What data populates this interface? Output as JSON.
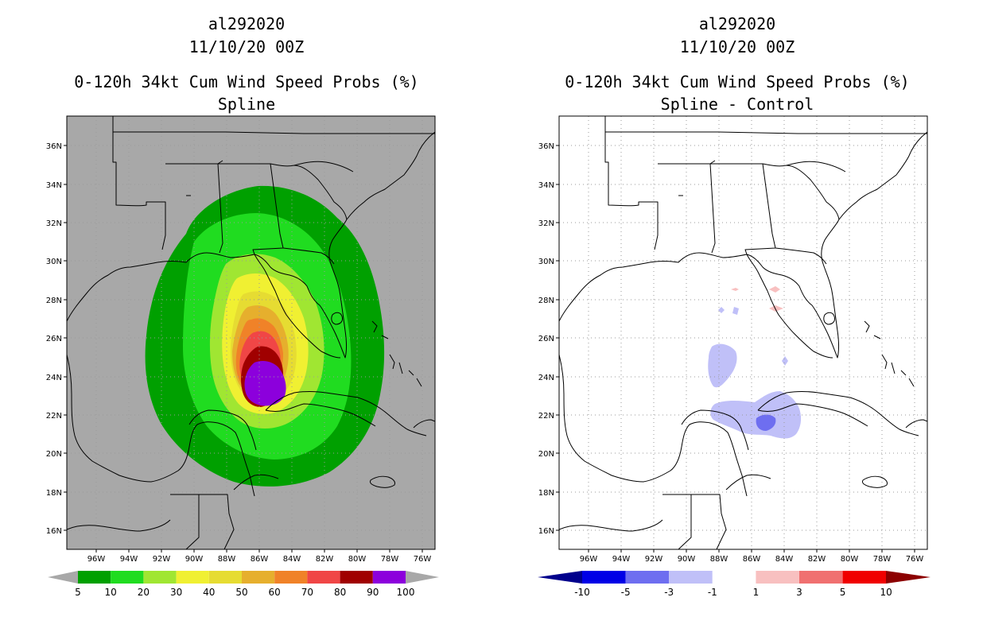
{
  "panels": [
    {
      "id": "left",
      "title_line1": "al292020",
      "title_line2": "11/10/20 00Z",
      "title_line3": "0-120h 34kt Cum Wind Speed Probs (%)",
      "title_line4": "Spline",
      "colorbar_labels": [
        "5",
        "10",
        "20",
        "30",
        "40",
        "50",
        "60",
        "70",
        "80",
        "90",
        "100"
      ],
      "colorbar_colors": [
        "#00a000",
        "#20dc20",
        "#a0e632",
        "#f0f032",
        "#e6dc32",
        "#e6af2d",
        "#f08228",
        "#f04646",
        "#a00000",
        "#8c00dc"
      ]
    },
    {
      "id": "right",
      "title_line1": "al292020",
      "title_line2": "11/10/20 00Z",
      "title_line3": "0-120h 34kt Cum Wind Speed Probs (%)",
      "title_line4": "Spline - Control",
      "colorbar_labels": [
        "-10",
        "-5",
        "-3",
        "-1",
        "1",
        "3",
        "5",
        "10"
      ],
      "colorbar_colors": [
        "#0000e6",
        "#6e6ef0",
        "#c0c0f8",
        "#ffffff",
        "#f8c0c0",
        "#f07070",
        "#f00000"
      ]
    }
  ],
  "axes": {
    "lon_labels": [
      "96W",
      "94W",
      "92W",
      "90W",
      "88W",
      "86W",
      "84W",
      "82W",
      "80W",
      "78W",
      "76W"
    ],
    "lat_labels": [
      "36N",
      "34N",
      "32N",
      "30N",
      "28N",
      "26N",
      "24N",
      "22N",
      "20N",
      "18N",
      "16N"
    ]
  },
  "colors": {
    "land_sea_background": "#a8a8a8",
    "diff_negative_light": "#c0c0f8",
    "diff_negative_mid": "#6e6ef0",
    "diff_positive_light": "#f8c0c0"
  }
}
